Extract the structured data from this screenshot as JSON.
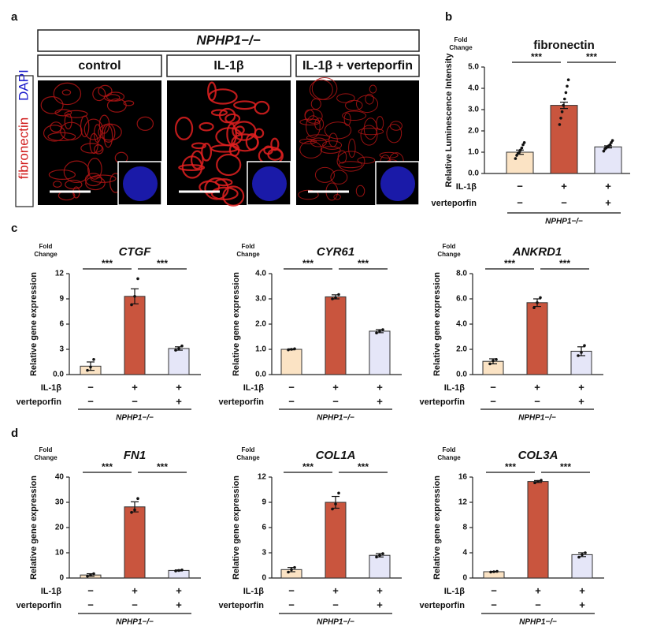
{
  "panel_labels": [
    "a",
    "b",
    "c",
    "d"
  ],
  "panel_a": {
    "genotype": "NPHP1−/−",
    "conditions": [
      "control",
      "IL-1β",
      "IL-1β + verteporfin"
    ],
    "stains": [
      {
        "name": "fibronectin",
        "color": "#d01818"
      },
      {
        "name": "DAPI",
        "color": "#1c1ccc"
      }
    ]
  },
  "chart_data": [
    {
      "type": "bar",
      "title": "fibronectin",
      "title_italic": false,
      "ylabel": "Relative Luminescence Intensity",
      "y_unit": [
        "Fold",
        "Change"
      ],
      "ylim": [
        0,
        5
      ],
      "yticks": [
        {
          "value": 0,
          "label": "0.0"
        },
        {
          "value": 1,
          "label": "1.0"
        },
        {
          "value": 2,
          "label": "2.0"
        },
        {
          "value": 3,
          "label": "3.0"
        },
        {
          "value": 4,
          "label": "4.0"
        },
        {
          "value": 5,
          "label": "5.0"
        }
      ],
      "values": [
        1.0,
        3.2,
        1.25
      ],
      "errors": [
        0.1,
        0.15,
        0.05
      ],
      "points": [
        [
          0.7,
          0.85,
          0.95,
          1.0,
          1.1,
          1.2,
          1.35,
          1.45
        ],
        [
          2.3,
          2.6,
          2.9,
          3.2,
          3.5,
          3.8,
          4.1,
          4.4
        ],
        [
          1.05,
          1.15,
          1.2,
          1.25,
          1.3,
          1.35,
          1.45,
          1.55
        ]
      ],
      "colors": [
        "#fbe3c4",
        "#c9553e",
        "#e5e6f8"
      ],
      "significance": [
        "***",
        "***"
      ],
      "conditions": [
        {
          "name": "IL-1β",
          "marks": [
            "−",
            "+",
            "+"
          ]
        },
        {
          "name": "verteporfin",
          "marks": [
            "−",
            "−",
            "+"
          ]
        }
      ],
      "group_label": "NPHP1−/−"
    },
    {
      "type": "bar",
      "title": "CTGF",
      "title_italic": true,
      "ylabel": "Relative gene expression",
      "y_unit": [
        "Fold",
        "Change"
      ],
      "ylim": [
        0,
        12
      ],
      "yticks": [
        {
          "value": 0,
          "label": "0.0"
        },
        3,
        6,
        9,
        12
      ],
      "values": [
        1.0,
        9.3,
        3.1
      ],
      "errors": [
        0.5,
        0.9,
        0.2
      ],
      "points": [
        [
          0.5,
          0.9,
          1.8
        ],
        [
          8.3,
          9.3,
          11.4
        ],
        [
          2.9,
          3.1,
          3.4
        ]
      ],
      "colors": [
        "#fbe3c4",
        "#c9553e",
        "#e5e6f8"
      ],
      "significance": [
        "***",
        "***"
      ],
      "conditions": [
        {
          "name": "IL-1β",
          "marks": [
            "−",
            "+",
            "+"
          ]
        },
        {
          "name": "verteporfin",
          "marks": [
            "−",
            "−",
            "+"
          ]
        }
      ],
      "group_label": "NPHP1−/−"
    },
    {
      "type": "bar",
      "title": "CYR61",
      "title_italic": true,
      "ylabel": "Relative gene expression",
      "y_unit": [
        "Fold",
        "Change"
      ],
      "ylim": [
        0,
        4
      ],
      "yticks": [
        {
          "value": 0,
          "label": "0.0"
        },
        {
          "value": 1,
          "label": "1.0"
        },
        {
          "value": 2,
          "label": "2.0"
        },
        {
          "value": 3,
          "label": "3.0"
        },
        {
          "value": 4,
          "label": "4.0"
        }
      ],
      "values": [
        1.0,
        3.08,
        1.72
      ],
      "errors": [
        0.02,
        0.08,
        0.06
      ],
      "points": [
        [
          0.98,
          1.0,
          1.02
        ],
        [
          3.0,
          3.05,
          3.17
        ],
        [
          1.65,
          1.72,
          1.78
        ]
      ],
      "colors": [
        "#fbe3c4",
        "#c9553e",
        "#e5e6f8"
      ],
      "significance": [
        "***",
        "***"
      ],
      "conditions": [
        {
          "name": "IL-1β",
          "marks": [
            "−",
            "+",
            "+"
          ]
        },
        {
          "name": "verteporfin",
          "marks": [
            "−",
            "−",
            "+"
          ]
        }
      ],
      "group_label": "NPHP1−/−"
    },
    {
      "type": "bar",
      "title": "ANKRD1",
      "title_italic": true,
      "ylabel": "Relative gene expression",
      "y_unit": [
        "Fold",
        "Change"
      ],
      "ylim": [
        0,
        8
      ],
      "yticks": [
        {
          "value": 0,
          "label": "0.0"
        },
        {
          "value": 2,
          "label": "2.0"
        },
        {
          "value": 4,
          "label": "4.0"
        },
        {
          "value": 6,
          "label": "6.0"
        },
        {
          "value": 8,
          "label": "8.0"
        }
      ],
      "values": [
        1.05,
        5.7,
        1.85
      ],
      "errors": [
        0.2,
        0.3,
        0.35
      ],
      "points": [
        [
          0.85,
          1.1,
          1.2
        ],
        [
          5.3,
          5.7,
          6.1
        ],
        [
          1.5,
          1.75,
          2.3
        ]
      ],
      "colors": [
        "#fbe3c4",
        "#c9553e",
        "#e5e6f8"
      ],
      "significance": [
        "***",
        "***"
      ],
      "conditions": [
        {
          "name": "IL-1β",
          "marks": [
            "−",
            "+",
            "+"
          ]
        },
        {
          "name": "verteporfin",
          "marks": [
            "−",
            "−",
            "+"
          ]
        }
      ],
      "group_label": "NPHP1−/−"
    },
    {
      "type": "bar",
      "title": "FN1",
      "title_italic": true,
      "ylabel": "Relative gene expression",
      "y_unit": [
        "Fold",
        "Change"
      ],
      "ylim": [
        0,
        40
      ],
      "yticks": [
        0,
        10,
        20,
        30,
        40
      ],
      "values": [
        1.2,
        28.2,
        3.0
      ],
      "errors": [
        0.5,
        2.0,
        0.2
      ],
      "points": [
        [
          0.7,
          1.2,
          1.7
        ],
        [
          26,
          27,
          31.5
        ],
        [
          2.8,
          3.0,
          3.2
        ]
      ],
      "colors": [
        "#fbe3c4",
        "#c9553e",
        "#e5e6f8"
      ],
      "significance": [
        "***",
        "***"
      ],
      "conditions": [
        {
          "name": "IL-1β",
          "marks": [
            "−",
            "+",
            "+"
          ]
        },
        {
          "name": "verteporfin",
          "marks": [
            "−",
            "−",
            "+"
          ]
        }
      ],
      "group_label": "NPHP1−/−"
    },
    {
      "type": "bar",
      "title": "COL1A",
      "title_italic": true,
      "ylabel": "Relative gene expression",
      "y_unit": [
        "Fold",
        "Change"
      ],
      "ylim": [
        0,
        12
      ],
      "yticks": [
        0,
        3,
        6,
        9,
        12
      ],
      "values": [
        1.0,
        9.0,
        2.7
      ],
      "errors": [
        0.25,
        0.7,
        0.2
      ],
      "points": [
        [
          0.7,
          1.0,
          1.25
        ],
        [
          8.2,
          8.8,
          10.1
        ],
        [
          2.5,
          2.7,
          2.9
        ]
      ],
      "colors": [
        "#fbe3c4",
        "#c9553e",
        "#e5e6f8"
      ],
      "significance": [
        "***",
        "***"
      ],
      "conditions": [
        {
          "name": "IL-1β",
          "marks": [
            "−",
            "+",
            "+"
          ]
        },
        {
          "name": "verteporfin",
          "marks": [
            "−",
            "−",
            "+"
          ]
        }
      ],
      "group_label": "NPHP1−/−"
    },
    {
      "type": "bar",
      "title": "COL3A",
      "title_italic": true,
      "ylabel": "Relative gene expression",
      "y_unit": [
        "Fold",
        "Change"
      ],
      "ylim": [
        0,
        16
      ],
      "yticks": [
        0,
        4,
        8,
        12,
        16
      ],
      "values": [
        1.0,
        15.3,
        3.7
      ],
      "errors": [
        0.05,
        0.15,
        0.3
      ],
      "points": [
        [
          0.95,
          1.0,
          1.05
        ],
        [
          15.1,
          15.3,
          15.5
        ],
        [
          3.3,
          3.7,
          4.0
        ]
      ],
      "colors": [
        "#fbe3c4",
        "#c9553e",
        "#e5e6f8"
      ],
      "significance": [
        "***",
        "***"
      ],
      "conditions": [
        {
          "name": "IL-1β",
          "marks": [
            "−",
            "+",
            "+"
          ]
        },
        {
          "name": "verteporfin",
          "marks": [
            "−",
            "−",
            "+"
          ]
        }
      ],
      "group_label": "NPHP1−/−"
    }
  ]
}
